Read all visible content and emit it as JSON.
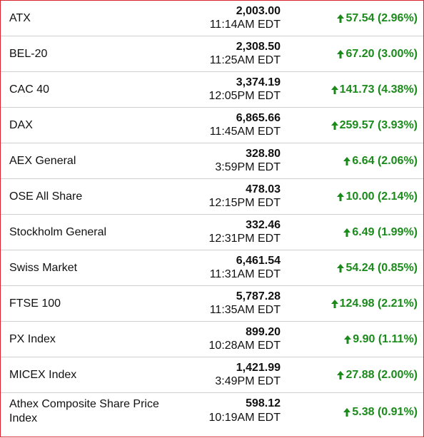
{
  "colors": {
    "border": "#d9232e",
    "up": "#1a8a1a"
  },
  "indices": [
    {
      "name": "ATX",
      "value": "2,003.00",
      "time": "11:14AM EDT",
      "change": "57.54 (2.96%)",
      "icon": "arrow-up-icon"
    },
    {
      "name": "BEL-20",
      "value": "2,308.50",
      "time": "11:25AM EDT",
      "change": "67.20 (3.00%)",
      "icon": "arrow-up-icon"
    },
    {
      "name": "CAC 40",
      "value": "3,374.19",
      "time": "12:05PM EDT",
      "change": "141.73 (4.38%)",
      "icon": "arrow-up-icon"
    },
    {
      "name": "DAX",
      "value": "6,865.66",
      "time": "11:45AM EDT",
      "change": "259.57 (3.93%)",
      "icon": "arrow-up-icon"
    },
    {
      "name": "AEX General",
      "value": "328.80",
      "time": "3:59PM EDT",
      "change": "6.64 (2.06%)",
      "icon": "arrow-up-icon"
    },
    {
      "name": "OSE All Share",
      "value": "478.03",
      "time": "12:15PM EDT",
      "change": "10.00 (2.14%)",
      "icon": "arrow-up-icon"
    },
    {
      "name": "Stockholm General",
      "value": "332.46",
      "time": "12:31PM EDT",
      "change": "6.49 (1.99%)",
      "icon": "arrow-up-icon"
    },
    {
      "name": "Swiss Market",
      "value": "6,461.54",
      "time": "11:31AM EDT",
      "change": "54.24 (0.85%)",
      "icon": "arrow-up-icon"
    },
    {
      "name": "FTSE 100",
      "value": "5,787.28",
      "time": "11:35AM EDT",
      "change": "124.98 (2.21%)",
      "icon": "arrow-up-icon"
    },
    {
      "name": "PX Index",
      "value": "899.20",
      "time": "10:28AM EDT",
      "change": "9.90 (1.11%)",
      "icon": "arrow-up-icon"
    },
    {
      "name": "MICEX Index",
      "value": "1,421.99",
      "time": "3:49PM EDT",
      "change": "27.88 (2.00%)",
      "icon": "arrow-up-icon"
    },
    {
      "name": "Athex Composite Share Price Index",
      "value": "598.12",
      "time": "10:19AM EDT",
      "change": "5.38 (0.91%)",
      "icon": "arrow-up-icon"
    }
  ]
}
